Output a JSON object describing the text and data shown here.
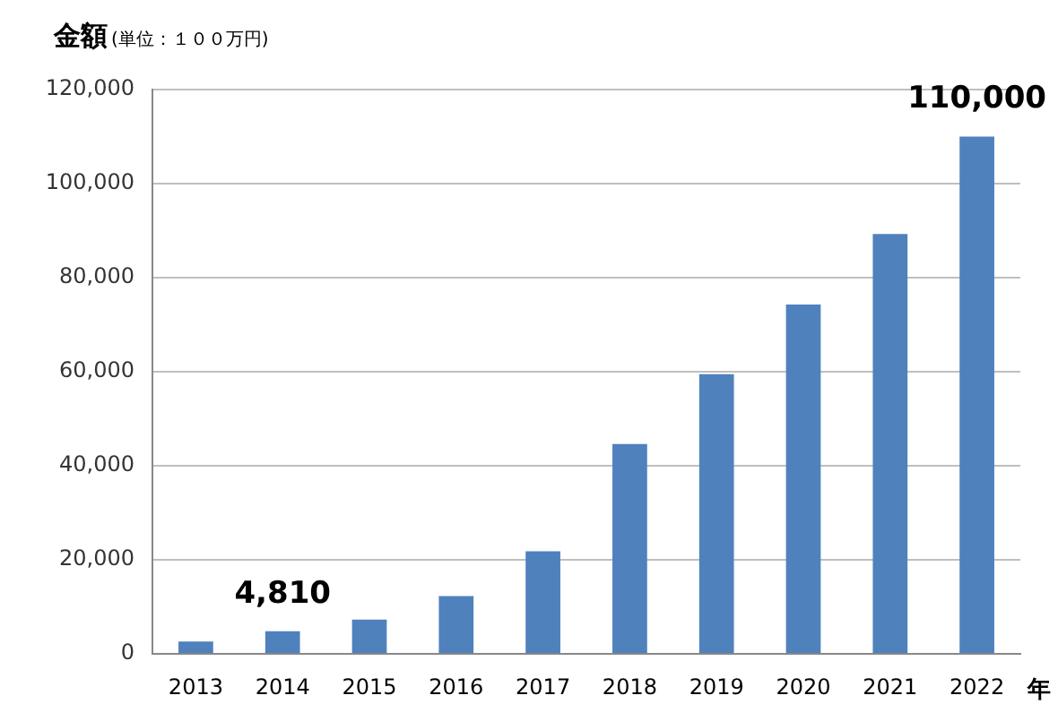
{
  "chart_data": {
    "type": "bar",
    "title": "金額",
    "subtitle": "(単位：１００万円)",
    "xlabel": "年",
    "categories": [
      "2013",
      "2014",
      "2015",
      "2016",
      "2017",
      "2018",
      "2019",
      "2020",
      "2021",
      "2022"
    ],
    "values": [
      2600,
      4810,
      7300,
      12300,
      21800,
      44600,
      59500,
      74300,
      89300,
      110000
    ],
    "value_labels": [
      null,
      "4,810",
      null,
      null,
      null,
      null,
      null,
      null,
      null,
      "110,000"
    ],
    "color": "#4f81bd",
    "ylim": [
      0,
      120000
    ],
    "yticks": [
      0,
      {
        "value": 20000,
        "label": "20,000"
      },
      {
        "value": 40000,
        "label": "40,000"
      },
      {
        "value": 60000,
        "label": "60,000"
      },
      {
        "value": 80000,
        "label": "80,000"
      },
      {
        "value": 100000,
        "label": "100,000"
      },
      {
        "value": 120000,
        "label": "120,000"
      }
    ],
    "grid": "y",
    "legend": false
  }
}
